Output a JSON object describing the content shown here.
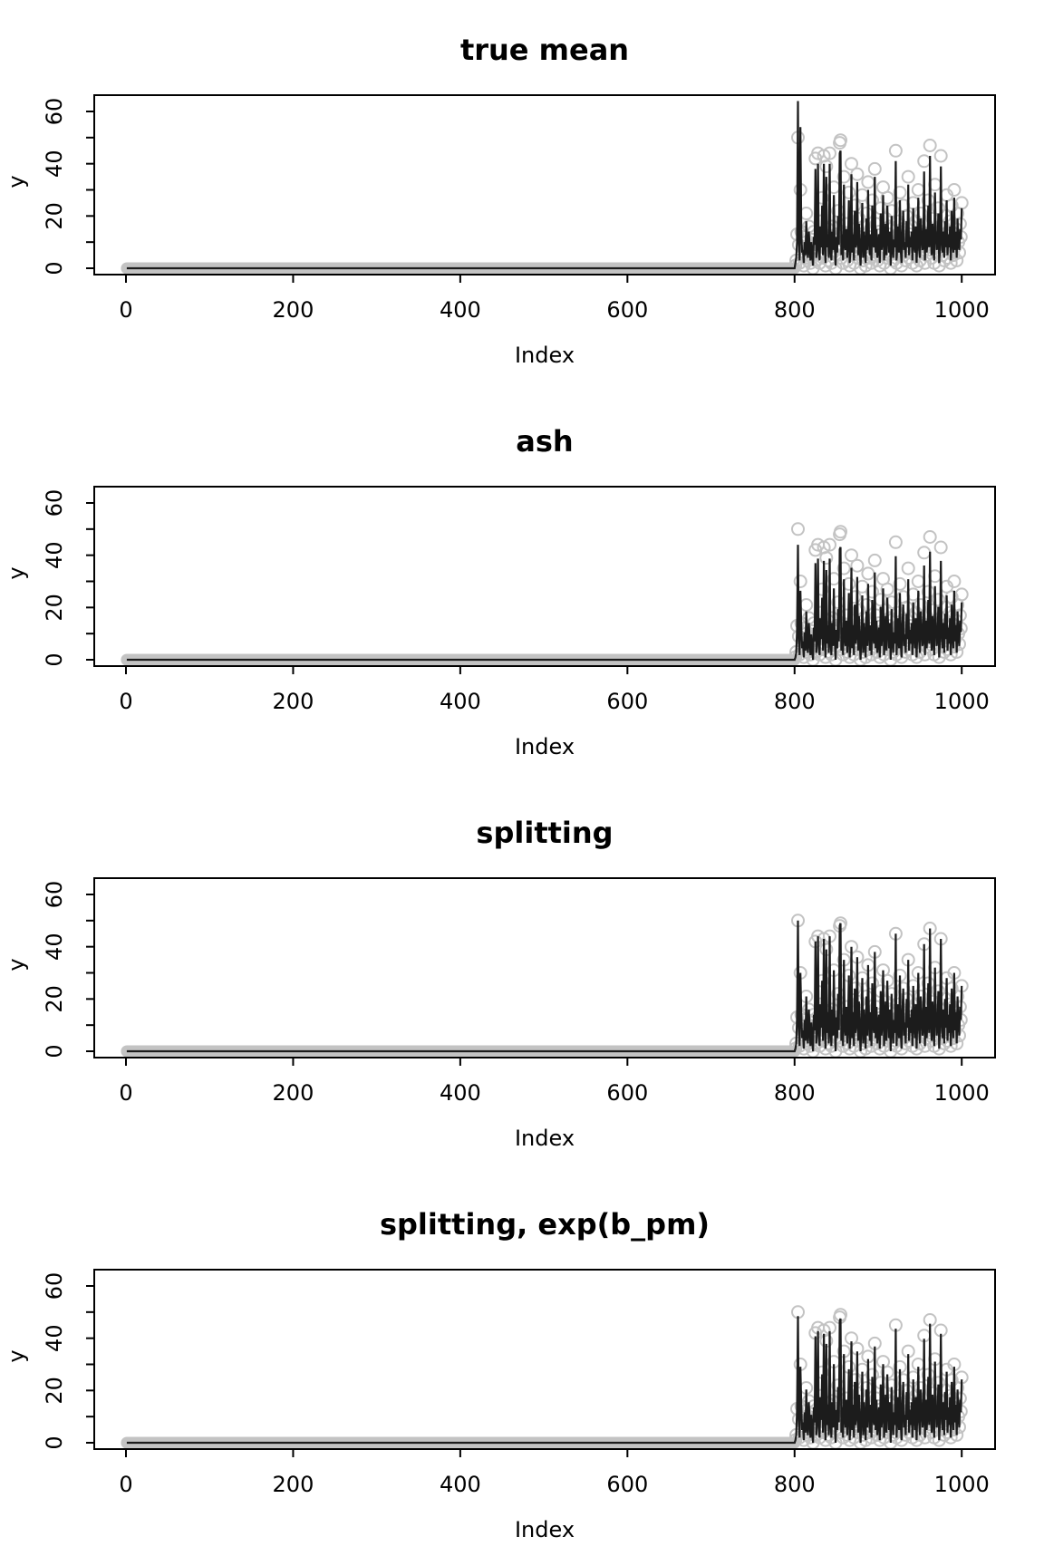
{
  "chart_data": {
    "type": "line",
    "description": "Four stacked R-style panels comparing mean estimates for Poisson-like data: flat zero mean for index 1-800, spiky signal for index 801-1000. Gray open circles are observed data (identical in all panels); black line is the mean / estimate named in each panel title.",
    "xlabel": "Index",
    "ylabel": "y",
    "xlim": [
      0,
      1000
    ],
    "ylim": [
      0,
      66
    ],
    "grid": "off",
    "legend": "none",
    "axes": {
      "x_ticks": [
        0,
        200,
        400,
        600,
        800,
        1000
      ],
      "y_ticks": [
        0,
        10,
        20,
        30,
        40,
        50,
        60
      ],
      "y_tick_labels": [
        0,
        20,
        40,
        60
      ]
    },
    "baseline": {
      "x_from": 1,
      "x_to": 800,
      "value": 0
    },
    "signal_start_index": 801,
    "observations_signal": [
      1,
      3,
      13,
      50,
      9,
      2,
      30,
      14,
      5,
      8,
      1,
      12,
      4,
      21,
      7,
      3,
      16,
      9,
      2,
      11,
      5,
      0,
      14,
      8,
      42,
      3,
      10,
      44,
      6,
      2,
      18,
      9,
      27,
      4,
      43,
      12,
      1,
      39,
      7,
      15,
      3,
      44,
      9,
      2,
      16,
      6,
      31,
      11,
      0,
      13,
      5,
      22,
      8,
      48,
      49,
      4,
      14,
      2,
      35,
      10,
      6,
      17,
      3,
      12,
      29,
      1,
      9,
      40,
      5,
      15,
      2,
      24,
      7,
      11,
      36,
      4,
      19,
      8,
      0,
      13,
      28,
      3,
      16,
      9,
      1,
      21,
      6,
      33,
      12,
      4,
      15,
      2,
      26,
      10,
      7,
      38,
      5,
      17,
      3,
      9,
      14,
      1,
      23,
      6,
      11,
      31,
      2,
      8,
      19,
      4,
      27,
      13,
      5,
      16,
      0,
      22,
      9,
      3,
      12,
      7,
      45,
      2,
      10,
      18,
      5,
      29,
      8,
      1,
      15,
      24,
      6,
      11,
      3,
      20,
      9,
      35,
      4,
      13,
      7,
      16,
      2,
      25,
      10,
      5,
      18,
      1,
      12,
      30,
      8,
      3,
      21,
      14,
      6,
      9,
      41,
      2,
      17,
      5,
      11,
      26,
      7,
      47,
      13,
      4,
      19,
      9,
      2,
      32,
      15,
      6,
      10,
      23,
      1,
      8,
      43,
      12,
      5,
      16,
      3,
      20,
      9,
      28,
      4,
      14,
      7,
      18,
      2,
      24,
      11,
      5,
      30,
      8,
      15,
      3,
      21,
      10,
      6,
      17,
      12,
      25
    ],
    "panels": [
      {
        "title": "true mean",
        "line_signal": [
          2,
          4,
          10,
          64,
          12,
          3,
          54,
          13,
          6,
          7,
          2,
          10,
          5,
          18,
          8,
          4,
          14,
          8,
          3,
          10,
          6,
          1,
          12,
          9,
          38,
          4,
          9,
          40,
          7,
          3,
          16,
          8,
          24,
          5,
          40,
          11,
          2,
          35,
          8,
          13,
          4,
          40,
          8,
          3,
          14,
          7,
          28,
          10,
          1,
          12,
          6,
          20,
          9,
          44,
          45,
          5,
          13,
          3,
          32,
          9,
          7,
          15,
          4,
          11,
          26,
          2,
          8,
          36,
          6,
          13,
          3,
          22,
          8,
          10,
          33,
          5,
          17,
          7,
          1,
          12,
          25,
          4,
          14,
          8,
          2,
          19,
          7,
          30,
          11,
          5,
          13,
          3,
          24,
          9,
          8,
          35,
          6,
          15,
          4,
          8,
          13,
          2,
          21,
          7,
          10,
          28,
          3,
          7,
          17,
          5,
          24,
          12,
          6,
          14,
          1,
          20,
          8,
          4,
          11,
          8,
          41,
          3,
          9,
          16,
          6,
          26,
          7,
          2,
          13,
          22,
          7,
          10,
          4,
          18,
          8,
          32,
          5,
          12,
          8,
          14,
          3,
          23,
          9,
          6,
          16,
          2,
          11,
          27,
          7,
          4,
          19,
          13,
          7,
          8,
          37,
          3,
          15,
          6,
          10,
          24,
          8,
          43,
          12,
          5,
          17,
          8,
          3,
          29,
          14,
          7,
          9,
          21,
          2,
          7,
          39,
          11,
          6,
          14,
          4,
          18,
          8,
          26,
          5,
          13,
          8,
          16,
          3,
          22,
          10,
          6,
          27,
          7,
          14,
          4,
          19,
          9,
          7,
          15,
          11,
          23
        ]
      },
      {
        "title": "ash",
        "line_scale": 0.88
      },
      {
        "title": "splitting",
        "line_scale": 1.0
      },
      {
        "title": "splitting, exp(b_pm)",
        "line_scale": 0.97
      }
    ],
    "colors": {
      "points": "#c3c3c3",
      "line": "#1c1c1c",
      "axis": "#000000",
      "background": "#ffffff"
    }
  }
}
